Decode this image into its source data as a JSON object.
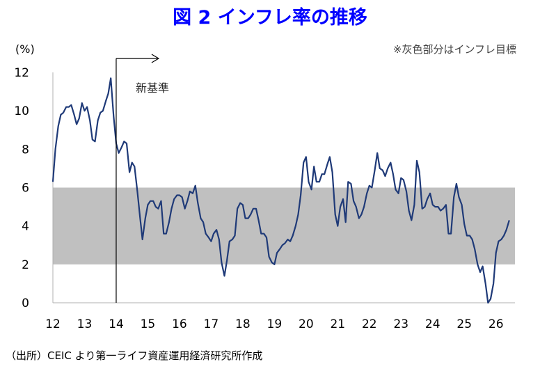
{
  "chart_data": {
    "type": "line",
    "title": "図 2 インフレ率の推移",
    "ylabel": "(%)",
    "note": "※灰色部分はインフレ目標",
    "source": "（出所）CEIC より第一ライフ資産運用経済研究所作成",
    "annotation": "新基準",
    "annotation_x": 14.0,
    "ylim": [
      0,
      12
    ],
    "xlim": [
      12,
      26.6
    ],
    "yticks": [
      "0",
      "2",
      "4",
      "6",
      "8",
      "10",
      "12"
    ],
    "xticks": [
      "12",
      "13",
      "14",
      "15",
      "16",
      "17",
      "18",
      "19",
      "20",
      "21",
      "22",
      "23",
      "24",
      "25",
      "26"
    ],
    "target_band": [
      2,
      6
    ],
    "colors": {
      "line": "#1f3a78",
      "band": "#c0c0c0",
      "title": "#0000ff"
    },
    "series": [
      {
        "x": [
          12.0,
          12.08,
          12.17,
          12.25,
          12.33,
          12.42,
          12.5,
          12.58,
          12.67,
          12.75,
          12.83,
          12.92,
          13.0,
          13.08,
          13.17,
          13.25,
          13.33,
          13.42,
          13.5,
          13.58,
          13.67,
          13.75,
          13.83,
          13.92,
          14.0,
          14.08,
          14.17,
          14.25,
          14.33,
          14.42,
          14.5,
          14.58,
          14.67,
          14.75,
          14.83,
          14.92,
          15.0,
          15.08,
          15.17,
          15.25,
          15.33,
          15.42,
          15.5,
          15.58,
          15.67,
          15.75,
          15.83,
          15.92,
          16.0,
          16.08,
          16.17,
          16.25,
          16.33,
          16.42,
          16.5,
          16.58,
          16.67,
          16.75,
          16.83,
          16.92,
          17.0,
          17.08,
          17.17,
          17.25,
          17.33,
          17.42,
          17.5,
          17.58,
          17.67,
          17.75,
          17.83,
          17.92,
          18.0,
          18.08,
          18.17,
          18.25,
          18.33,
          18.42,
          18.5,
          18.58,
          18.67,
          18.75,
          18.83,
          18.92,
          19.0,
          19.08,
          19.17,
          19.25,
          19.33,
          19.42,
          19.5,
          19.58,
          19.67,
          19.75,
          19.83,
          19.92,
          20.0,
          20.08,
          20.17,
          20.25,
          20.33,
          20.42,
          20.5,
          20.58,
          20.67,
          20.75,
          20.83,
          20.92,
          21.0,
          21.08,
          21.17,
          21.25,
          21.33,
          21.42,
          21.5,
          21.58,
          21.67,
          21.75,
          21.83,
          21.92,
          22.0,
          22.08,
          22.17,
          22.25,
          22.33,
          22.42,
          22.5,
          22.58,
          22.67,
          22.75,
          22.83,
          22.92,
          23.0,
          23.08,
          23.17,
          23.25,
          23.33,
          23.42,
          23.5,
          23.58,
          23.67,
          23.75,
          23.83,
          23.92,
          24.0,
          24.08,
          24.17,
          24.25,
          24.33,
          24.42,
          24.5,
          24.58,
          24.67,
          24.75,
          24.83,
          24.92,
          25.0,
          25.08,
          25.17,
          25.25,
          25.33,
          25.42,
          25.5,
          25.58,
          25.67,
          25.75,
          25.83,
          25.92,
          26.0,
          26.08,
          26.17,
          26.25,
          26.33,
          26.42
        ],
        "y": [
          6.3,
          8.0,
          9.2,
          9.8,
          9.9,
          10.2,
          10.2,
          10.3,
          9.8,
          9.3,
          9.6,
          10.4,
          10.0,
          10.2,
          9.5,
          8.5,
          8.4,
          9.5,
          9.9,
          10.0,
          10.5,
          10.9,
          11.7,
          9.7,
          8.3,
          7.8,
          8.1,
          8.4,
          8.3,
          6.8,
          7.3,
          7.1,
          5.8,
          4.5,
          3.3,
          4.4,
          5.1,
          5.3,
          5.3,
          5.0,
          4.9,
          5.3,
          3.6,
          3.6,
          4.2,
          4.9,
          5.4,
          5.6,
          5.6,
          5.5,
          4.9,
          5.3,
          5.8,
          5.7,
          6.1,
          5.2,
          4.4,
          4.2,
          3.6,
          3.4,
          3.2,
          3.6,
          3.8,
          3.3,
          2.1,
          1.4,
          2.2,
          3.2,
          3.3,
          3.5,
          4.9,
          5.2,
          5.1,
          4.4,
          4.4,
          4.6,
          4.9,
          4.9,
          4.3,
          3.6,
          3.6,
          3.4,
          2.4,
          2.1,
          2.0,
          2.6,
          2.8,
          3.0,
          3.1,
          3.3,
          3.2,
          3.5,
          4.0,
          4.6,
          5.6,
          7.3,
          7.6,
          6.3,
          5.9,
          7.1,
          6.3,
          6.3,
          6.7,
          6.7,
          7.2,
          7.6,
          6.8,
          4.6,
          4.0,
          5.0,
          5.4,
          4.2,
          6.3,
          6.2,
          5.3,
          5.0,
          4.4,
          4.6,
          5.0,
          5.7,
          6.1,
          6.0,
          6.9,
          7.8,
          7.0,
          6.9,
          6.6,
          7.0,
          7.3,
          6.7,
          5.9,
          5.7,
          6.5,
          6.4,
          5.8,
          4.8,
          4.3,
          5.1,
          7.4,
          6.8,
          4.9,
          5.0,
          5.4,
          5.7,
          5.1,
          5.0,
          5.0,
          4.8,
          4.9,
          5.1,
          3.6,
          3.6,
          5.5,
          6.2,
          5.5,
          5.1,
          4.1,
          3.5,
          3.5,
          3.3,
          2.8,
          2.0,
          1.6,
          1.9,
          1.0,
          0.0,
          0.2,
          1.0,
          2.6,
          3.2,
          3.3,
          3.5,
          3.8,
          4.3
        ]
      }
    ]
  }
}
